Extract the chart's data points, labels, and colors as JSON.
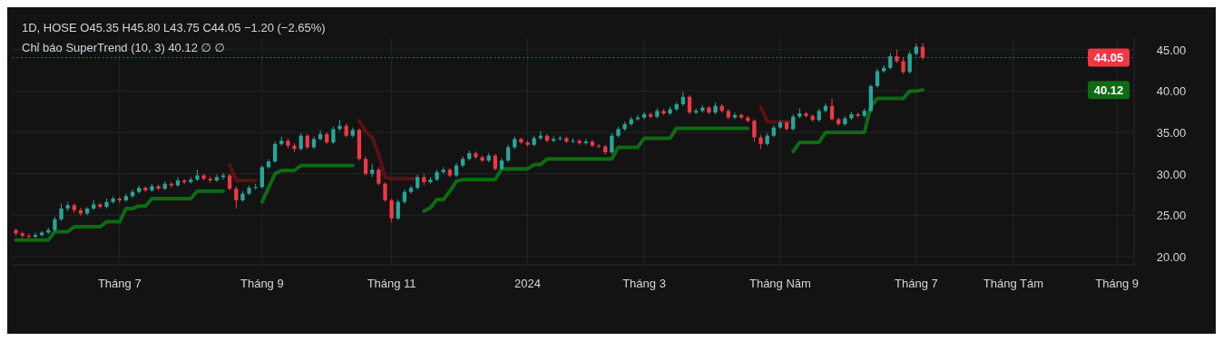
{
  "chart_data": {
    "type": "candlestick",
    "title": "1D, HOSE  O45.35  H45.80  L43.75  C44.05  −1.20 (−2.65%)",
    "subtitle": "Chỉ báo SuperTrend (10, 3)  40.12  ∅  ∅",
    "categories": [
      null,
      null,
      null,
      null,
      null,
      null,
      null,
      null,
      null,
      null,
      null,
      null,
      null,
      null,
      null,
      null,
      "Tháng 7",
      null,
      null,
      null,
      null,
      null,
      null,
      null,
      null,
      null,
      null,
      null,
      null,
      null,
      null,
      null,
      null,
      null,
      null,
      null,
      null,
      null,
      "Tháng 9",
      null,
      null,
      null,
      null,
      null,
      null,
      null,
      null,
      null,
      null,
      null,
      null,
      null,
      null,
      null,
      null,
      null,
      null,
      null,
      "Tháng 11",
      null,
      null,
      null,
      null,
      null,
      null,
      null,
      null,
      null,
      null,
      null,
      null,
      null,
      null,
      null,
      null,
      null,
      null,
      null,
      null,
      "2024",
      null,
      null,
      null,
      null,
      null,
      null,
      null,
      null,
      null,
      null,
      null,
      null,
      null,
      null,
      null,
      null,
      null,
      "Tháng 3",
      null,
      null,
      null,
      null,
      null,
      null,
      null,
      null,
      null,
      null,
      null,
      null,
      null,
      null,
      null,
      null,
      null,
      null,
      null,
      null,
      "Tháng Năm",
      null,
      null,
      null,
      null,
      null,
      null,
      null,
      null,
      null,
      null,
      null,
      null,
      null,
      null,
      null,
      null,
      null,
      null,
      null,
      null,
      "Tháng 7",
      null,
      null,
      null,
      null,
      null,
      null,
      null,
      null,
      null,
      null,
      null,
      null,
      null,
      null,
      "Tháng Tám",
      null,
      null,
      null,
      null,
      null,
      null,
      null,
      null,
      null,
      null,
      null,
      null,
      null,
      null,
      null,
      "Tháng 9",
      null,
      null
    ],
    "ohlc": [
      [
        23.2,
        23.4,
        22.5,
        22.8
      ],
      [
        22.8,
        23.0,
        22.3,
        22.5
      ],
      [
        22.5,
        22.8,
        22.2,
        22.4
      ],
      [
        22.4,
        22.9,
        22.2,
        22.6
      ],
      [
        22.6,
        23.1,
        22.4,
        22.9
      ],
      [
        22.9,
        23.5,
        22.7,
        23.2
      ],
      [
        23.2,
        24.8,
        23.0,
        24.5
      ],
      [
        24.5,
        26.4,
        24.3,
        25.8
      ],
      [
        25.8,
        26.6,
        25.5,
        26.2
      ],
      [
        26.2,
        26.4,
        25.3,
        25.6
      ],
      [
        25.6,
        25.9,
        24.9,
        25.2
      ],
      [
        25.2,
        26.0,
        25.0,
        25.8
      ],
      [
        25.8,
        26.8,
        25.6,
        26.3
      ],
      [
        26.3,
        26.5,
        25.8,
        26.0
      ],
      [
        26.0,
        27.0,
        25.8,
        26.6
      ],
      [
        26.6,
        27.3,
        26.4,
        27.0
      ],
      [
        27.0,
        27.2,
        26.5,
        26.8
      ],
      [
        26.8,
        27.6,
        26.6,
        27.3
      ],
      [
        27.3,
        28.1,
        27.1,
        27.8
      ],
      [
        27.8,
        28.6,
        27.6,
        28.3
      ],
      [
        28.3,
        28.5,
        27.8,
        28.0
      ],
      [
        28.0,
        28.8,
        27.8,
        28.5
      ],
      [
        28.5,
        28.7,
        28.0,
        28.2
      ],
      [
        28.2,
        29.1,
        28.0,
        28.8
      ],
      [
        28.8,
        29.0,
        28.3,
        28.6
      ],
      [
        28.6,
        29.6,
        28.4,
        29.2
      ],
      [
        29.2,
        29.4,
        28.7,
        29.0
      ],
      [
        29.0,
        29.6,
        28.8,
        29.3
      ],
      [
        29.3,
        30.5,
        29.1,
        29.8
      ],
      [
        29.8,
        30.0,
        29.2,
        29.4
      ],
      [
        29.4,
        29.7,
        28.9,
        29.2
      ],
      [
        29.2,
        29.9,
        29.0,
        29.6
      ],
      [
        29.6,
        30.1,
        29.3,
        29.8
      ],
      [
        29.8,
        30.0,
        28.0,
        28.2
      ],
      [
        28.2,
        28.5,
        25.8,
        26.8
      ],
      [
        26.8,
        27.9,
        26.6,
        27.6
      ],
      [
        27.6,
        28.6,
        27.4,
        28.3
      ],
      [
        28.3,
        28.8,
        28.1,
        28.4
      ],
      [
        28.4,
        31.0,
        28.2,
        30.8
      ],
      [
        30.8,
        31.8,
        30.6,
        31.5
      ],
      [
        31.5,
        33.9,
        31.3,
        33.6
      ],
      [
        33.6,
        34.5,
        33.4,
        34.0
      ],
      [
        34.0,
        34.3,
        33.1,
        33.4
      ],
      [
        33.4,
        33.7,
        32.6,
        33.0
      ],
      [
        33.0,
        34.9,
        32.8,
        34.6
      ],
      [
        34.6,
        34.8,
        33.0,
        33.2
      ],
      [
        33.2,
        34.5,
        33.0,
        34.2
      ],
      [
        34.2,
        35.3,
        34.0,
        34.8
      ],
      [
        34.8,
        35.0,
        33.6,
        33.8
      ],
      [
        33.8,
        35.7,
        33.6,
        35.4
      ],
      [
        35.4,
        36.5,
        35.2,
        35.8
      ],
      [
        35.8,
        36.1,
        34.4,
        34.6
      ],
      [
        34.6,
        35.6,
        34.4,
        35.3
      ],
      [
        35.3,
        35.5,
        31.6,
        31.8
      ],
      [
        31.8,
        32.1,
        29.8,
        30.0
      ],
      [
        30.0,
        31.2,
        29.6,
        30.5
      ],
      [
        30.5,
        30.8,
        28.6,
        28.8
      ],
      [
        28.8,
        29.0,
        26.6,
        26.8
      ],
      [
        26.8,
        27.0,
        24.1,
        24.6
      ],
      [
        24.6,
        26.9,
        24.4,
        26.6
      ],
      [
        26.6,
        28.1,
        26.4,
        27.8
      ],
      [
        27.8,
        28.6,
        27.6,
        28.3
      ],
      [
        28.3,
        29.9,
        28.1,
        29.6
      ],
      [
        29.6,
        30.0,
        28.6,
        29.0
      ],
      [
        29.0,
        29.6,
        28.8,
        29.3
      ],
      [
        29.3,
        30.5,
        29.1,
        30.2
      ],
      [
        30.2,
        30.8,
        30.0,
        30.5
      ],
      [
        30.5,
        30.7,
        29.6,
        29.8
      ],
      [
        29.8,
        31.3,
        29.6,
        31.0
      ],
      [
        31.0,
        32.1,
        30.8,
        31.8
      ],
      [
        31.8,
        32.8,
        31.6,
        32.5
      ],
      [
        32.5,
        32.7,
        31.8,
        32.0
      ],
      [
        32.0,
        32.2,
        31.4,
        31.6
      ],
      [
        31.6,
        32.5,
        31.4,
        32.2
      ],
      [
        32.2,
        32.4,
        30.4,
        30.6
      ],
      [
        30.6,
        31.9,
        30.4,
        31.6
      ],
      [
        31.6,
        33.5,
        31.4,
        33.2
      ],
      [
        33.2,
        34.5,
        33.0,
        34.2
      ],
      [
        34.2,
        34.4,
        33.6,
        33.8
      ],
      [
        33.8,
        34.0,
        33.3,
        33.5
      ],
      [
        33.5,
        34.6,
        33.3,
        34.3
      ],
      [
        34.3,
        35.2,
        34.1,
        34.6
      ],
      [
        34.6,
        34.8,
        33.8,
        34.0
      ],
      [
        34.0,
        34.5,
        33.8,
        34.2
      ],
      [
        34.2,
        34.6,
        34.0,
        34.3
      ],
      [
        34.3,
        34.5,
        33.7,
        33.9
      ],
      [
        33.9,
        34.3,
        33.7,
        34.0
      ],
      [
        34.0,
        34.2,
        33.5,
        33.7
      ],
      [
        33.7,
        34.2,
        33.5,
        33.9
      ],
      [
        33.9,
        34.1,
        33.2,
        33.4
      ],
      [
        33.4,
        33.6,
        33.1,
        33.3
      ],
      [
        33.3,
        33.5,
        32.3,
        32.6
      ],
      [
        32.6,
        34.9,
        32.4,
        34.6
      ],
      [
        34.6,
        35.7,
        34.4,
        35.4
      ],
      [
        35.4,
        36.3,
        35.2,
        36.0
      ],
      [
        36.0,
        36.9,
        35.8,
        36.6
      ],
      [
        36.6,
        37.1,
        36.4,
        36.8
      ],
      [
        36.8,
        37.5,
        36.6,
        37.2
      ],
      [
        37.2,
        37.4,
        36.7,
        36.9
      ],
      [
        36.9,
        37.9,
        36.7,
        37.6
      ],
      [
        37.6,
        37.8,
        37.1,
        37.3
      ],
      [
        37.3,
        38.1,
        37.1,
        37.8
      ],
      [
        37.8,
        38.7,
        37.6,
        38.4
      ],
      [
        38.4,
        39.9,
        38.2,
        39.3
      ],
      [
        39.3,
        39.5,
        37.2,
        37.4
      ],
      [
        37.4,
        37.9,
        37.2,
        37.6
      ],
      [
        37.6,
        38.3,
        37.4,
        38.0
      ],
      [
        38.0,
        38.2,
        37.2,
        37.4
      ],
      [
        37.4,
        38.6,
        37.2,
        38.2
      ],
      [
        38.2,
        38.4,
        37.4,
        37.6
      ],
      [
        37.6,
        37.8,
        36.6,
        36.8
      ],
      [
        36.8,
        37.4,
        36.6,
        37.1
      ],
      [
        37.1,
        37.3,
        36.6,
        36.8
      ],
      [
        36.8,
        37.0,
        36.2,
        36.4
      ],
      [
        36.4,
        36.6,
        33.9,
        34.4
      ],
      [
        34.4,
        34.7,
        33.0,
        33.6
      ],
      [
        33.6,
        34.9,
        33.4,
        34.6
      ],
      [
        34.6,
        35.9,
        34.4,
        35.6
      ],
      [
        35.6,
        36.5,
        35.4,
        36.2
      ],
      [
        36.2,
        36.4,
        35.2,
        35.4
      ],
      [
        35.4,
        37.2,
        35.2,
        36.9
      ],
      [
        36.9,
        37.9,
        36.7,
        37.3
      ],
      [
        37.3,
        37.5,
        36.8,
        37.0
      ],
      [
        37.0,
        37.2,
        36.3,
        36.5
      ],
      [
        36.5,
        37.9,
        36.3,
        37.6
      ],
      [
        37.6,
        38.5,
        37.4,
        38.2
      ],
      [
        38.2,
        39.1,
        36.4,
        36.6
      ],
      [
        36.6,
        36.8,
        35.8,
        36.0
      ],
      [
        36.0,
        37.0,
        35.8,
        36.7
      ],
      [
        36.7,
        37.5,
        36.5,
        37.2
      ],
      [
        37.2,
        37.4,
        36.8,
        37.0
      ],
      [
        37.0,
        37.9,
        36.8,
        37.6
      ],
      [
        37.6,
        40.8,
        37.4,
        40.6
      ],
      [
        40.6,
        42.7,
        40.4,
        42.4
      ],
      [
        42.4,
        43.1,
        42.2,
        42.8
      ],
      [
        42.8,
        44.6,
        42.6,
        44.2
      ],
      [
        44.2,
        45.0,
        43.4,
        43.6
      ],
      [
        43.6,
        44.0,
        42.1,
        42.3
      ],
      [
        42.3,
        44.8,
        42.1,
        44.5
      ],
      [
        44.5,
        45.7,
        44.3,
        45.35
      ],
      [
        45.35,
        45.8,
        43.75,
        44.05
      ],
      null,
      null,
      null,
      null,
      null,
      null,
      null,
      null,
      null,
      null,
      null,
      null,
      null,
      null,
      null,
      null,
      null,
      null,
      null,
      null,
      null,
      null,
      null,
      null,
      null,
      null,
      null,
      null,
      null,
      null,
      null,
      null
    ],
    "series": [
      {
        "type": "line",
        "color": "#0d6b12",
        "values": [
          22.0,
          22.0,
          22.0,
          22.0,
          22.0,
          22.0,
          23.0,
          23.0,
          23.0,
          23.6,
          23.6,
          23.6,
          23.6,
          23.6,
          24.2,
          24.2,
          24.2,
          25.8,
          25.8,
          26.1,
          26.1,
          27.0,
          27.0,
          27.0,
          27.0,
          27.0,
          27.0,
          27.0,
          27.9,
          27.9,
          27.9,
          27.9,
          27.9,
          null,
          null,
          null,
          null,
          null,
          26.6,
          28.3,
          30.0,
          30.4,
          30.4,
          30.4,
          31.0,
          31.0,
          31.0,
          31.0,
          31.0,
          31.0,
          31.0,
          31.0,
          31.0,
          null,
          null,
          null,
          null,
          null,
          null,
          null,
          null,
          null,
          null,
          25.5,
          25.9,
          26.9,
          26.9,
          27.9,
          29.1,
          29.3,
          29.3,
          29.3,
          29.3,
          29.3,
          29.3,
          30.6,
          30.6,
          30.6,
          30.6,
          30.6,
          31.1,
          31.1,
          31.8,
          31.8,
          31.8,
          31.8,
          31.8,
          31.8,
          31.8,
          31.8,
          31.8,
          31.8,
          31.8,
          33.2,
          33.2,
          33.2,
          33.2,
          34.3,
          34.3,
          34.3,
          34.3,
          34.3,
          35.5,
          35.5,
          35.5,
          35.5,
          35.5,
          35.5,
          35.5,
          35.5,
          35.5,
          35.5,
          35.5,
          35.5,
          null,
          null,
          null,
          null,
          null,
          null,
          32.7,
          33.8,
          33.8,
          33.8,
          33.8,
          35.0,
          35.0,
          35.0,
          35.0,
          35.0,
          35.0,
          35.0,
          38.2,
          39.1,
          39.1,
          39.1,
          39.1,
          39.1,
          40.0,
          40.0,
          40.12,
          null,
          null,
          null,
          null,
          null,
          null,
          null,
          null,
          null,
          null,
          null,
          null,
          null,
          null,
          null,
          null,
          null,
          null,
          null,
          null,
          null,
          null,
          null,
          null,
          null,
          null,
          null,
          null,
          null,
          null,
          null,
          null
        ]
      },
      {
        "type": "line",
        "color": "#5c1014",
        "values": [
          null,
          null,
          null,
          null,
          null,
          null,
          null,
          null,
          null,
          null,
          null,
          null,
          null,
          null,
          null,
          null,
          null,
          null,
          null,
          null,
          null,
          null,
          null,
          null,
          null,
          null,
          null,
          null,
          null,
          null,
          null,
          null,
          null,
          31.1,
          29.2,
          29.2,
          29.2,
          29.2,
          null,
          null,
          null,
          null,
          null,
          null,
          null,
          null,
          null,
          null,
          null,
          null,
          null,
          null,
          null,
          36.4,
          35.1,
          34.4,
          32.4,
          29.6,
          29.4,
          29.4,
          29.4,
          29.4,
          29.4,
          null,
          null,
          null,
          null,
          null,
          null,
          null,
          null,
          null,
          null,
          null,
          null,
          null,
          null,
          null,
          null,
          null,
          null,
          null,
          null,
          null,
          null,
          null,
          null,
          null,
          null,
          null,
          null,
          null,
          null,
          null,
          null,
          null,
          null,
          null,
          null,
          null,
          null,
          null,
          null,
          null,
          null,
          null,
          null,
          null,
          null,
          null,
          null,
          null,
          null,
          null,
          null,
          38.1,
          36.3,
          36.3,
          36.3,
          36.3,
          36.3,
          null,
          null,
          null,
          null,
          null,
          null,
          null,
          null,
          null,
          null,
          null,
          null,
          null,
          null,
          null,
          null,
          null,
          null,
          null,
          null,
          null,
          null,
          null,
          null,
          null,
          null,
          null,
          null,
          null,
          null,
          null,
          null,
          null,
          null,
          null,
          null,
          null,
          null,
          null,
          null,
          null,
          null,
          null,
          null,
          null,
          null,
          null,
          null,
          null,
          null,
          null,
          null
        ]
      }
    ],
    "ylim": [
      19.0,
      46.4
    ],
    "yticks": [
      {
        "value": 20,
        "label": "20.00"
      },
      {
        "value": 25,
        "label": "25.00"
      },
      {
        "value": 30,
        "label": "30.00"
      },
      {
        "value": 35,
        "label": "35.00"
      },
      {
        "value": 40,
        "label": "40.00"
      },
      {
        "value": 45,
        "label": "45.00"
      }
    ],
    "ref_lines": [
      {
        "axis": "y",
        "value": 44.05,
        "label": "44.05",
        "color": "#f23645",
        "line_style": "dotted"
      }
    ],
    "annotations": [
      "40.12"
    ],
    "grid": true
  }
}
